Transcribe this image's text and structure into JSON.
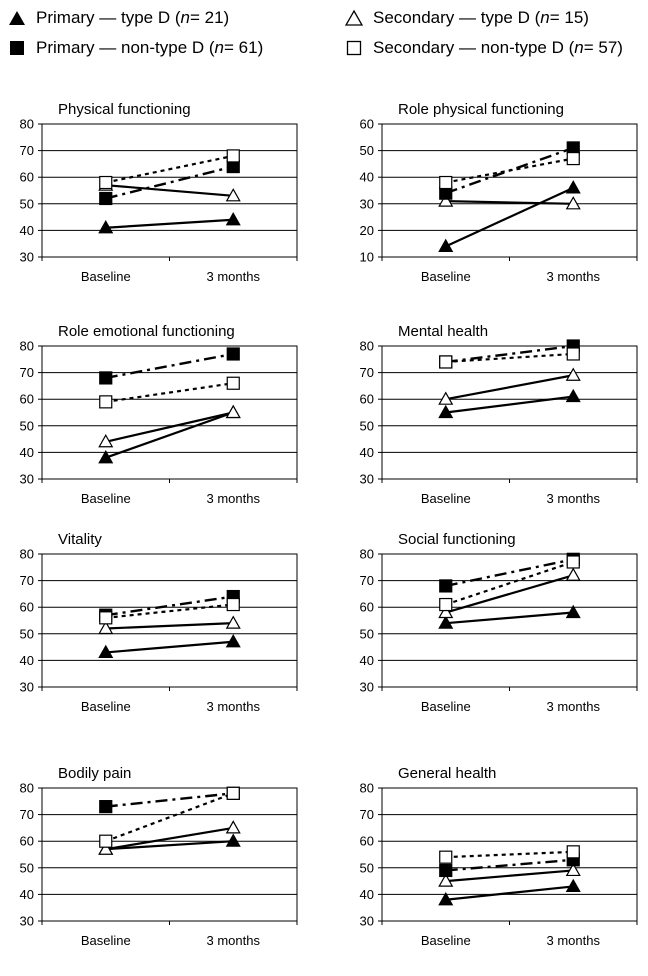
{
  "legend": [
    {
      "key": "primary_type_d",
      "marker": "filled-triangle",
      "text_before": "Primary — type D (",
      "n_label": "n",
      "text_after": " = 21)"
    },
    {
      "key": "secondary_type_d",
      "marker": "open-triangle",
      "text_before": "Secondary — type D (",
      "n_label": "n",
      "text_after": " = 15)"
    },
    {
      "key": "primary_non_type_d",
      "marker": "filled-square",
      "text_before": "Primary — non-type D (",
      "n_label": "n",
      "text_after": " = 61)"
    },
    {
      "key": "secondary_non_type_d",
      "marker": "open-square",
      "text_before": "Secondary — non-type D (",
      "n_label": "n",
      "text_after": " = 57)"
    }
  ],
  "chart_data": [
    {
      "type": "line",
      "title": "Physical functioning",
      "categories": [
        "Baseline",
        "3 months"
      ],
      "ylim": [
        30,
        80
      ],
      "yticks": [
        30,
        40,
        50,
        60,
        70,
        80
      ],
      "grid": true,
      "series": [
        {
          "name": "Primary — type D (n = 21)",
          "values": [
            41,
            44
          ]
        },
        {
          "name": "Secondary — type D (n = 15)",
          "values": [
            57,
            53
          ]
        },
        {
          "name": "Primary — non-type D (n = 61)",
          "values": [
            52,
            64
          ]
        },
        {
          "name": "Secondary — non-type D (n = 57)",
          "values": [
            58,
            68
          ]
        }
      ]
    },
    {
      "type": "line",
      "title": "Role physical functioning",
      "categories": [
        "Baseline",
        "3 months"
      ],
      "ylim": [
        10,
        60
      ],
      "yticks": [
        10,
        20,
        30,
        40,
        50,
        60
      ],
      "grid": true,
      "series": [
        {
          "name": "Primary — type D (n = 21)",
          "values": [
            14,
            36
          ]
        },
        {
          "name": "Secondary — type D (n = 15)",
          "values": [
            31,
            30
          ]
        },
        {
          "name": "Primary — non-type D (n = 61)",
          "values": [
            34,
            51
          ]
        },
        {
          "name": "Secondary — non-type D (n = 57)",
          "values": [
            38,
            47
          ]
        }
      ]
    },
    {
      "type": "line",
      "title": "Role emotional functioning",
      "categories": [
        "Baseline",
        "3 months"
      ],
      "ylim": [
        30,
        80
      ],
      "yticks": [
        30,
        40,
        50,
        60,
        70,
        80
      ],
      "grid": true,
      "series": [
        {
          "name": "Primary — type D (n = 21)",
          "values": [
            38,
            55
          ]
        },
        {
          "name": "Secondary — type D (n = 15)",
          "values": [
            44,
            55
          ]
        },
        {
          "name": "Primary — non-type D (n = 61)",
          "values": [
            68,
            77
          ]
        },
        {
          "name": "Secondary — non-type D (n = 57)",
          "values": [
            59,
            66
          ]
        }
      ]
    },
    {
      "type": "line",
      "title": "Mental health",
      "categories": [
        "Baseline",
        "3 months"
      ],
      "ylim": [
        30,
        80
      ],
      "yticks": [
        30,
        40,
        50,
        60,
        70,
        80
      ],
      "grid": true,
      "series": [
        {
          "name": "Primary — type D (n = 21)",
          "values": [
            55,
            61
          ]
        },
        {
          "name": "Secondary — type D (n = 15)",
          "values": [
            60,
            69
          ]
        },
        {
          "name": "Primary — non-type D (n = 61)",
          "values": [
            74,
            80
          ]
        },
        {
          "name": "Secondary — non-type D (n = 57)",
          "values": [
            74,
            77
          ]
        }
      ]
    },
    {
      "type": "line",
      "title": "Vitality",
      "categories": [
        "Baseline",
        "3 months"
      ],
      "ylim": [
        30,
        80
      ],
      "yticks": [
        30,
        40,
        50,
        60,
        70,
        80
      ],
      "grid": true,
      "series": [
        {
          "name": "Primary — type D (n = 21)",
          "values": [
            43,
            47
          ]
        },
        {
          "name": "Secondary — type D (n = 15)",
          "values": [
            52,
            54
          ]
        },
        {
          "name": "Primary — non-type D (n = 61)",
          "values": [
            57,
            64
          ]
        },
        {
          "name": "Secondary — non-type D (n = 57)",
          "values": [
            56,
            61
          ]
        }
      ]
    },
    {
      "type": "line",
      "title": "Social functioning",
      "categories": [
        "Baseline",
        "3 months"
      ],
      "ylim": [
        30,
        80
      ],
      "yticks": [
        30,
        40,
        50,
        60,
        70,
        80
      ],
      "grid": true,
      "series": [
        {
          "name": "Primary — type D (n = 21)",
          "values": [
            54,
            58
          ]
        },
        {
          "name": "Secondary — type D (n = 15)",
          "values": [
            58,
            72
          ]
        },
        {
          "name": "Primary — non-type D (n = 61)",
          "values": [
            68,
            78
          ]
        },
        {
          "name": "Secondary — non-type D (n = 57)",
          "values": [
            61,
            77
          ]
        }
      ]
    },
    {
      "type": "line",
      "title": "Bodily pain",
      "categories": [
        "Baseline",
        "3 months"
      ],
      "ylim": [
        30,
        80
      ],
      "yticks": [
        30,
        40,
        50,
        60,
        70,
        80
      ],
      "grid": true,
      "series": [
        {
          "name": "Primary — type D (n = 21)",
          "values": [
            57,
            60
          ]
        },
        {
          "name": "Secondary — type D (n = 15)",
          "values": [
            57,
            65
          ]
        },
        {
          "name": "Primary — non-type D (n = 61)",
          "values": [
            73,
            78
          ]
        },
        {
          "name": "Secondary — non-type D (n = 57)",
          "values": [
            60,
            78
          ]
        }
      ]
    },
    {
      "type": "line",
      "title": "General health",
      "categories": [
        "Baseline",
        "3 months"
      ],
      "ylim": [
        30,
        80
      ],
      "yticks": [
        30,
        40,
        50,
        60,
        70,
        80
      ],
      "grid": true,
      "series": [
        {
          "name": "Primary — type D (n = 21)",
          "values": [
            38,
            43
          ]
        },
        {
          "name": "Secondary — type D (n = 15)",
          "values": [
            45,
            49
          ]
        },
        {
          "name": "Primary — non-type D (n = 61)",
          "values": [
            49,
            53
          ]
        },
        {
          "name": "Secondary — non-type D (n = 57)",
          "values": [
            54,
            56
          ]
        }
      ]
    }
  ]
}
